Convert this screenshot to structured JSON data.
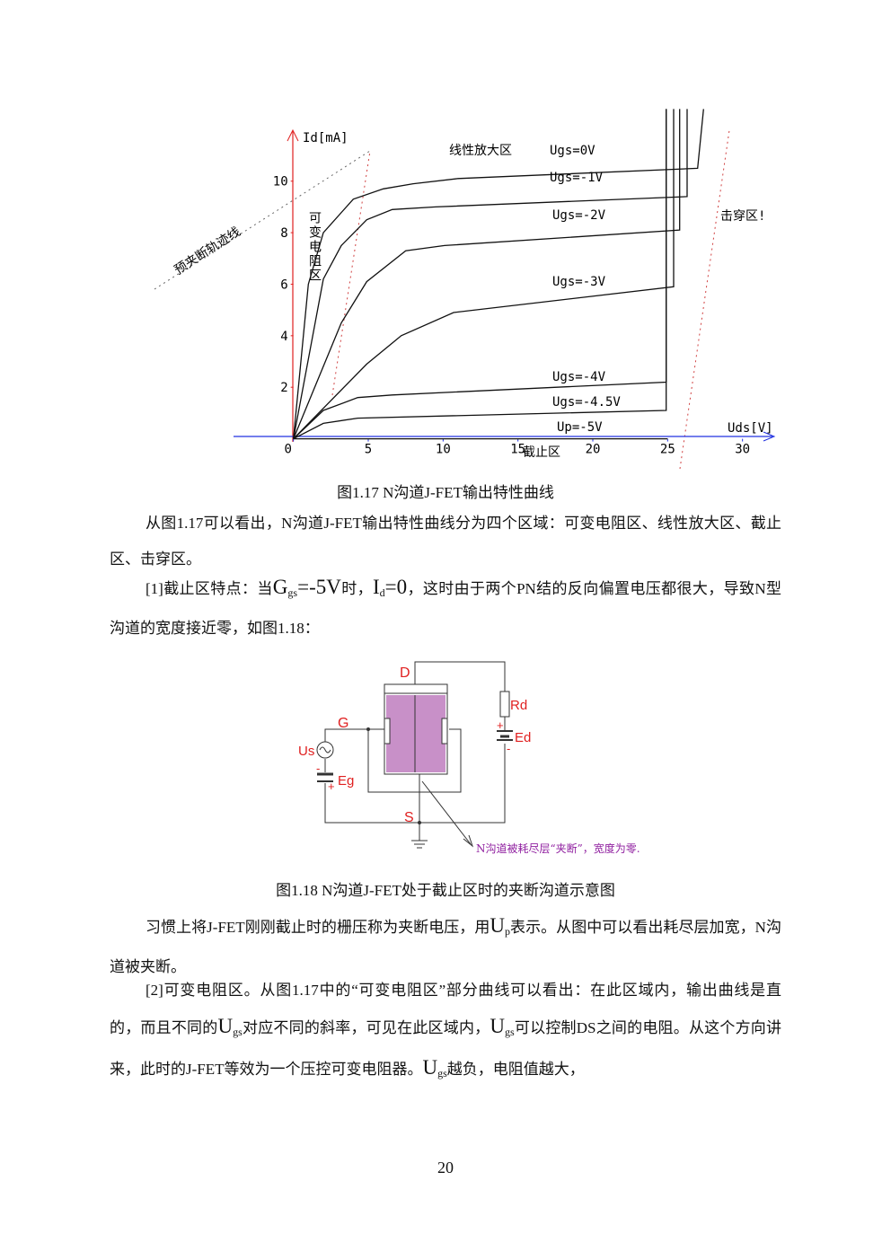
{
  "figure1": {
    "type": "line",
    "y_label": "Id[mA]",
    "x_label": "Uds[V]",
    "xlim": [
      -4,
      32
    ],
    "ylim": [
      -1.2,
      12.5
    ],
    "xticks": [
      0,
      5,
      10,
      15,
      20,
      25,
      30
    ],
    "yticks": [
      2,
      4,
      6,
      8,
      10
    ],
    "series": [
      {
        "name": "Ugs=0V",
        "x": [
          0,
          1,
          2,
          4,
          6,
          8,
          11,
          27,
          27.4
        ],
        "values": [
          0,
          6,
          8,
          9.3,
          9.7,
          9.9,
          10.1,
          10.5,
          12.8
        ]
      },
      {
        "name": "Ugs=-1V",
        "x": [
          0,
          2,
          3.2,
          4.9,
          6.6,
          9.5,
          26.3,
          26.3
        ],
        "values": [
          0,
          6.2,
          7.5,
          8.5,
          8.9,
          9,
          9.4,
          12.8
        ]
      },
      {
        "name": "Ugs=-2V",
        "x": [
          0,
          3.2,
          4.9,
          7.5,
          10.1,
          25.8,
          25.8
        ],
        "values": [
          0,
          4.5,
          6.1,
          7.3,
          7.5,
          8.1,
          12.8
        ]
      },
      {
        "name": "Ugs=-3V",
        "x": [
          0,
          4.9,
          7.2,
          10.7,
          25.4,
          25.4
        ],
        "values": [
          0,
          2.9,
          4,
          4.9,
          5.9,
          12.8
        ]
      },
      {
        "name": "Ugs=-4V",
        "x": [
          0,
          2,
          4.3,
          6.6,
          24.9,
          24.9
        ],
        "values": [
          0,
          1.1,
          1.6,
          1.7,
          2.2,
          12.8
        ]
      },
      {
        "name": "Ugs=-4.5V",
        "x": [
          0,
          2,
          4.3,
          24.9,
          24.9
        ],
        "values": [
          0,
          0.6,
          0.8,
          1.1,
          12.8
        ]
      },
      {
        "name": "Up=-5V",
        "x": [
          0,
          25
        ],
        "values": [
          0,
          0
        ]
      }
    ],
    "annotations": [
      "线性放大区",
      "可变电阻区",
      "预夹断轨迹线",
      "击穿区!",
      "截止区"
    ],
    "caption": "图1.17   N沟道J-FET输出特性曲线"
  },
  "paragraphs": [
    [
      "从图1.17可以看出，N沟道J-FET输出特性曲线分为四个区域：可变电阻区、线性放大区、截止区、击穿区。"
    ],
    [
      "[1]截止区特点：当",
      "G",
      "gs",
      "=-5V",
      "时，",
      "I",
      "d",
      "=0",
      "，这时由于两个PN结的反向偏置电压都很大，导致N型沟道的宽度接近零，如图1.18："
    ],
    [
      "习惯上将J-FET刚刚截止时的栅压称为夹断电压，用",
      "U",
      "p",
      "表示。从图中可以看出耗尽层加宽，N沟道被夹断。"
    ],
    [
      "[2]可变电阻区。从图1.17中的“可变电阻区”部分曲线可以看出：在此区域内，输出曲线是直的，而且不同的",
      "U",
      "gs",
      "对应不同的斜率，可见在此区域内，",
      "U",
      "gs",
      "可以控制DS之间的电阻。从这个方向讲来，此时的J-FET等效为一个压控可变电阻器。",
      "U",
      "gs",
      "越负，电阻值越大，"
    ]
  ],
  "figure2": {
    "labels": {
      "d": "D",
      "g": "G",
      "s": "S",
      "rd": "Rd",
      "ed": "Ed",
      "us": "Us",
      "eg": "Eg",
      "plus": "+",
      "minus": "-"
    },
    "note": "N沟道被耗尽层“夹断”，宽度为零.",
    "caption": "图1.18  N沟道J-FET处于截止区时的夹断沟道示意图"
  },
  "page_number": "20"
}
